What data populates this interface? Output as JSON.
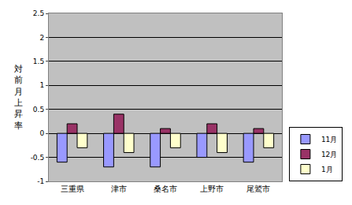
{
  "chart_data": {
    "type": "bar",
    "y_label": "対前月上昇率",
    "categories": [
      "三重県",
      "津市",
      "桑名市",
      "上野市",
      "尾鷲市"
    ],
    "series": [
      {
        "name": "11月",
        "color": "#9999ff",
        "values": [
          -0.6,
          -0.7,
          -0.7,
          -0.5,
          -0.6
        ]
      },
      {
        "name": "12月",
        "color": "#993366",
        "values": [
          0.2,
          0.4,
          0.1,
          0.2,
          0.1
        ]
      },
      {
        "name": "1月",
        "color": "#ffffcc",
        "values": [
          -0.3,
          -0.4,
          -0.3,
          -0.4,
          -0.3
        ]
      }
    ],
    "ylim": [
      -1,
      2.5
    ],
    "yticks": [
      -1,
      -0.5,
      0,
      0.5,
      1,
      1.5,
      2,
      2.5
    ],
    "grid": true,
    "legend": "right"
  }
}
